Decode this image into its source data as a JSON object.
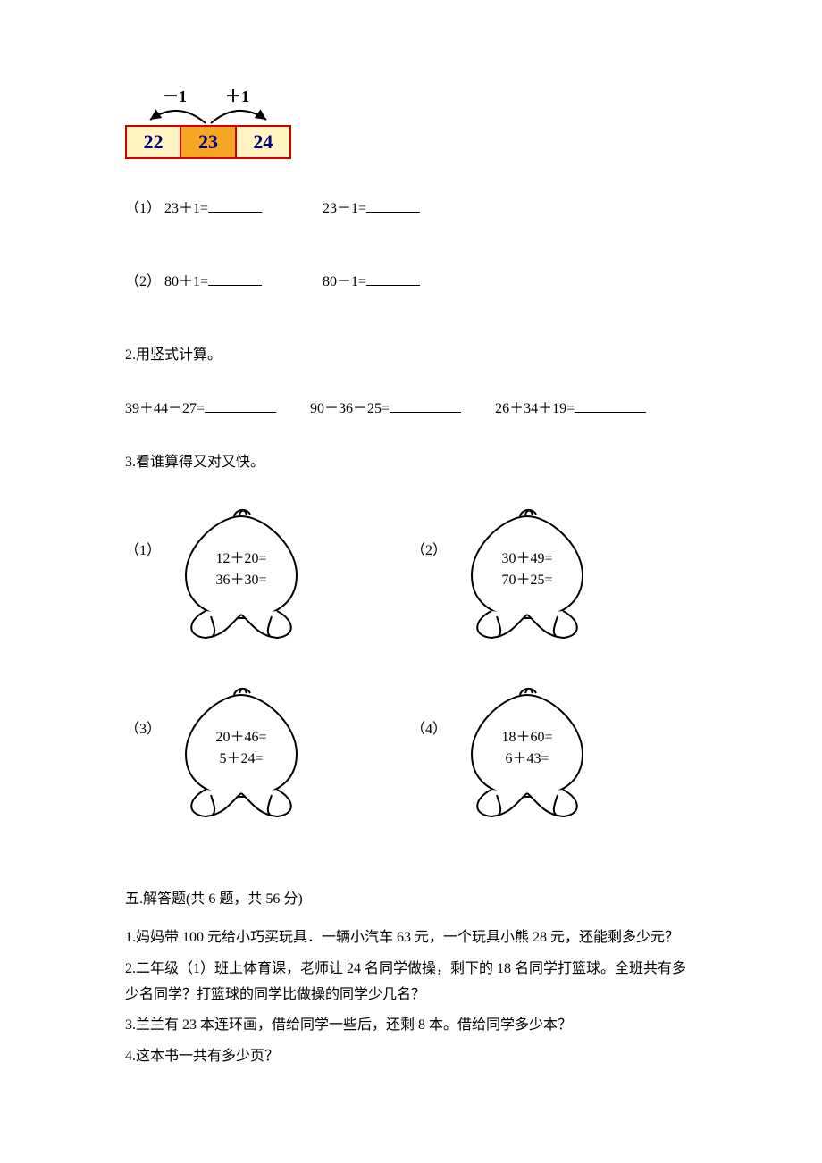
{
  "diagram": {
    "leftOp": "－1",
    "rightOp": "＋1",
    "cells": [
      "22",
      "23",
      "24"
    ],
    "borderColor": "#d00000",
    "outerFill": "#fff4c2",
    "centerFill": "#f5a623",
    "textColor": "#000080"
  },
  "q1": {
    "part1Label": "（1）",
    "part1a": "23＋1=",
    "part1b": "23－1=",
    "part2Label": "（2）",
    "part2a": "80＋1=",
    "part2b": "80－1="
  },
  "q2": {
    "title": "2.用竖式计算。",
    "a": "39＋44－27=",
    "b": "90－36－25=",
    "c": "26＋34＋19="
  },
  "q3": {
    "title": "3.看谁算得又对又快。",
    "items": [
      {
        "num": "（1）",
        "line1": "12＋20=",
        "line2": "36＋30="
      },
      {
        "num": "（2）",
        "line1": "30＋49=",
        "line2": "70＋25="
      },
      {
        "num": "（3）",
        "line1": "20＋46=",
        "line2": "5＋24="
      },
      {
        "num": "（4）",
        "line1": "18＋60=",
        "line2": "6＋43="
      }
    ]
  },
  "section5": {
    "title": "五.解答题(共 6 题，共 56 分)",
    "lines": [
      "1.妈妈带 100 元给小巧买玩具．一辆小汽车 63 元，一个玩具小熊 28 元，还能剩多少元？",
      "2.二年级（1）班上体育课，老师让 24 名同学做操，剩下的 18 名同学打篮球。全班共有多少名同学？打篮球的同学比做操的同学少几名？",
      "3.兰兰有 23 本连环画，借给同学一些后，还剩 8 本。借给同学多少本？",
      "4.这本书一共有多少页？"
    ]
  },
  "style": {
    "peachStroke": "#000000",
    "peachFill": "#ffffff"
  }
}
